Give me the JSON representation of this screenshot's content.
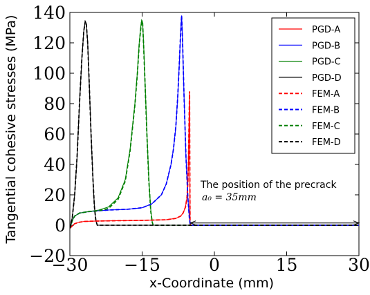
{
  "chart_data": {
    "type": "line",
    "xlabel": "x-Coordinate (mm)",
    "ylabel": "Tangential cohesive stresses (MPa)",
    "xlim": [
      -30,
      30
    ],
    "ylim": [
      -20,
      140
    ],
    "xticks": [
      -30,
      -15,
      0,
      15,
      30
    ],
    "yticks": [
      -20,
      0,
      20,
      40,
      60,
      80,
      100,
      120,
      140
    ],
    "xtick_labels": [
      "−30",
      "−15",
      "0",
      "15",
      "30"
    ],
    "ytick_labels": [
      "−20",
      "0",
      "20",
      "40",
      "60",
      "80",
      "100",
      "120",
      "140"
    ],
    "grid": false,
    "legend_position": "top-right",
    "series": [
      {
        "name": "PGD-A",
        "color": "#ff0000",
        "dash": "solid",
        "x": [
          -30,
          -29,
          -28,
          -27,
          -25,
          -20,
          -15,
          -10,
          -8,
          -7,
          -6.5,
          -6,
          -5.7,
          -5.5,
          -5.4,
          -5.3,
          -5.2,
          -5.15,
          -5.1,
          -5.05,
          -5.0,
          30
        ],
        "y": [
          -2,
          1,
          2,
          2.5,
          2.7,
          3,
          3.2,
          3.6,
          4.5,
          6,
          8,
          12,
          18,
          28,
          40,
          60,
          80,
          88,
          40,
          2,
          0,
          0
        ]
      },
      {
        "name": "PGD-B",
        "color": "#0000ff",
        "dash": "solid",
        "x": [
          -30,
          -29.5,
          -29,
          -28,
          -26,
          -22,
          -18,
          -15,
          -13,
          -11,
          -10,
          -9,
          -8.5,
          -8,
          -7.6,
          -7.3,
          -7.1,
          -6.9,
          -6.8,
          -6.6,
          -6.3,
          -5.9,
          -5.5,
          -5.2,
          -5.0,
          30
        ],
        "y": [
          -2,
          3,
          6,
          8,
          9,
          10,
          10.5,
          11.5,
          14,
          20,
          27,
          40,
          50,
          65,
          85,
          105,
          120,
          133,
          138,
          120,
          85,
          45,
          18,
          5,
          0,
          0
        ]
      },
      {
        "name": "PGD-C",
        "color": "#008000",
        "dash": "solid",
        "x": [
          -30,
          -29.5,
          -29,
          -28,
          -26,
          -24,
          -22,
          -20,
          -18.5,
          -17.5,
          -16.5,
          -16,
          -15.6,
          -15.3,
          -15.1,
          -14.9,
          -14.7,
          -14.4,
          -14,
          -13.6,
          -13.2,
          -12.9,
          -12.7,
          30
        ],
        "y": [
          -2,
          3,
          6,
          8,
          9,
          10,
          12,
          18,
          30,
          50,
          80,
          100,
          120,
          130,
          135,
          134,
          120,
          95,
          60,
          30,
          10,
          2,
          0,
          0
        ]
      },
      {
        "name": "PGD-D",
        "color": "#000000",
        "dash": "solid",
        "x": [
          -30,
          -29.5,
          -29,
          -28.5,
          -28,
          -27.5,
          -27.1,
          -26.8,
          -26.6,
          -26.3,
          -26,
          -25.6,
          -25.2,
          -24.9,
          -24.6,
          -24.3,
          30
        ],
        "y": [
          -2,
          5,
          20,
          45,
          80,
          110,
          128,
          134,
          133,
          120,
          95,
          60,
          30,
          12,
          3,
          0,
          0
        ]
      },
      {
        "name": "FEM-A",
        "color": "#ff0000",
        "dash": "dashed",
        "x": [
          -30,
          -29,
          -28,
          -27,
          -25,
          -20,
          -15,
          -10,
          -8,
          -7,
          -6.5,
          -6,
          -5.7,
          -5.5,
          -5.4,
          -5.3,
          -5.2,
          -5.15,
          -5.1,
          -5.05,
          -5.0,
          30
        ],
        "y": [
          -2,
          1,
          2,
          2.5,
          2.7,
          3,
          3.2,
          3.6,
          4.5,
          6,
          8,
          12,
          18,
          28,
          40,
          60,
          80,
          88,
          40,
          2,
          0,
          0
        ]
      },
      {
        "name": "FEM-B",
        "color": "#0000ff",
        "dash": "dashed",
        "x": [
          -30,
          -29.5,
          -29,
          -28,
          -26,
          -22,
          -18,
          -15,
          -13,
          -11,
          -10,
          -9,
          -8.5,
          -8,
          -7.6,
          -7.3,
          -7.1,
          -6.9,
          -6.8,
          -6.6,
          -6.3,
          -5.9,
          -5.5,
          -5.2,
          -5.0,
          30
        ],
        "y": [
          -2,
          3,
          6,
          8,
          9,
          10,
          10.5,
          11.5,
          14,
          20,
          27,
          40,
          50,
          65,
          85,
          105,
          120,
          133,
          138,
          120,
          85,
          45,
          18,
          5,
          0,
          0
        ]
      },
      {
        "name": "FEM-C",
        "color": "#008000",
        "dash": "dashed",
        "x": [
          -30,
          -29.5,
          -29,
          -28,
          -26,
          -24,
          -22,
          -20,
          -18.5,
          -17.5,
          -16.5,
          -16,
          -15.6,
          -15.3,
          -15.1,
          -14.9,
          -14.7,
          -14.4,
          -14,
          -13.6,
          -13.2,
          -12.9,
          -12.7,
          30
        ],
        "y": [
          -2,
          3,
          6,
          8,
          9,
          9.5,
          11,
          17,
          29,
          49,
          79,
          99,
          119,
          129,
          134,
          133,
          119,
          94,
          59,
          29,
          9,
          2,
          0,
          0
        ]
      },
      {
        "name": "FEM-D",
        "color": "#000000",
        "dash": "dashed",
        "x": [
          -30,
          -29.5,
          -29,
          -28.5,
          -28,
          -27.5,
          -27.1,
          -26.8,
          -26.6,
          -26.3,
          -26,
          -25.6,
          -25.2,
          -24.9,
          -24.6,
          -24.3,
          30
        ],
        "y": [
          -2,
          5,
          20,
          45,
          80,
          110,
          128,
          134,
          133,
          120,
          95,
          60,
          30,
          12,
          3,
          0,
          0
        ]
      }
    ],
    "annotations": [
      {
        "text": "The position of the precrack",
        "x": -4.5,
        "y": 24
      },
      {
        "text": "a₀ = 35mm",
        "x": -4.5,
        "y": 15
      },
      {
        "type": "double-arrow",
        "x1": -5,
        "x2": 30,
        "y": 1.5
      }
    ]
  }
}
